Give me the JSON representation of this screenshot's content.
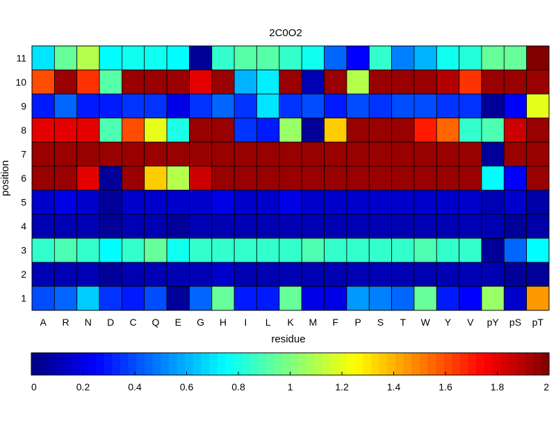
{
  "chart_data": {
    "type": "heatmap",
    "title": "2C0O2",
    "xlabel": "residue",
    "ylabel": "position",
    "x_categories": [
      "A",
      "R",
      "N",
      "D",
      "C",
      "Q",
      "E",
      "G",
      "H",
      "I",
      "L",
      "K",
      "M",
      "F",
      "P",
      "S",
      "T",
      "W",
      "Y",
      "V",
      "pY",
      "pS",
      "pT"
    ],
    "y_categories": [
      "11",
      "10",
      "9",
      "8",
      "7",
      "6",
      "5",
      "4",
      "3",
      "2",
      "1"
    ],
    "values": [
      [
        0.7,
        0.95,
        1.1,
        0.75,
        0.78,
        0.78,
        0.75,
        0.05,
        0.85,
        0.92,
        0.92,
        0.85,
        0.78,
        0.45,
        0.25,
        0.85,
        0.5,
        0.6,
        0.78,
        0.82,
        0.95,
        0.95,
        2.0
      ],
      [
        1.6,
        1.95,
        1.65,
        0.92,
        1.95,
        1.95,
        1.95,
        1.8,
        1.95,
        0.6,
        0.72,
        1.95,
        0.1,
        1.95,
        1.1,
        1.95,
        1.95,
        1.95,
        1.9,
        1.65,
        1.95,
        1.95,
        1.95
      ],
      [
        0.3,
        0.45,
        0.3,
        0.3,
        0.35,
        0.35,
        0.2,
        0.35,
        0.45,
        0.35,
        0.7,
        0.35,
        0.4,
        0.3,
        0.4,
        0.35,
        0.4,
        0.4,
        0.35,
        0.35,
        0.05,
        0.25,
        1.2
      ],
      [
        1.8,
        1.8,
        1.8,
        0.9,
        1.6,
        1.2,
        0.8,
        1.95,
        1.95,
        0.35,
        0.3,
        1.05,
        0.05,
        1.35,
        1.95,
        1.95,
        1.95,
        1.7,
        1.55,
        0.85,
        0.9,
        1.85,
        1.95
      ],
      [
        1.95,
        1.95,
        1.95,
        1.95,
        1.95,
        1.95,
        1.95,
        1.95,
        1.95,
        1.95,
        1.95,
        1.95,
        1.95,
        1.95,
        1.95,
        1.95,
        1.95,
        1.95,
        1.95,
        1.95,
        0.05,
        1.95,
        1.95
      ],
      [
        1.95,
        1.95,
        1.8,
        0.05,
        1.95,
        1.35,
        1.1,
        1.85,
        1.95,
        1.95,
        1.95,
        1.95,
        1.95,
        1.95,
        1.95,
        1.95,
        1.95,
        1.95,
        1.95,
        1.95,
        0.75,
        0.25,
        1.95
      ],
      [
        0.15,
        0.2,
        0.15,
        0.05,
        0.15,
        0.15,
        0.15,
        0.15,
        0.2,
        0.15,
        0.15,
        0.2,
        0.15,
        0.15,
        0.15,
        0.15,
        0.15,
        0.15,
        0.15,
        0.15,
        0.1,
        0.15,
        0.08
      ],
      [
        0.1,
        0.1,
        0.1,
        0.05,
        0.1,
        0.1,
        0.05,
        0.1,
        0.1,
        0.1,
        0.1,
        0.1,
        0.1,
        0.1,
        0.1,
        0.1,
        0.1,
        0.1,
        0.1,
        0.1,
        0.1,
        0.05,
        0.08
      ],
      [
        0.85,
        0.9,
        0.85,
        0.75,
        0.85,
        0.95,
        0.78,
        0.85,
        0.85,
        0.85,
        0.85,
        0.85,
        0.9,
        0.85,
        0.85,
        0.85,
        0.85,
        0.9,
        0.85,
        0.85,
        0.05,
        0.45,
        0.75
      ],
      [
        0.1,
        0.1,
        0.1,
        0.05,
        0.1,
        0.1,
        0.1,
        0.1,
        0.15,
        0.1,
        0.1,
        0.1,
        0.1,
        0.1,
        0.1,
        0.1,
        0.1,
        0.1,
        0.1,
        0.1,
        0.1,
        0.05,
        0.05
      ],
      [
        0.4,
        0.45,
        0.65,
        0.35,
        0.3,
        0.4,
        0.05,
        0.45,
        0.95,
        0.3,
        0.3,
        0.95,
        0.2,
        0.2,
        0.55,
        0.5,
        0.45,
        0.95,
        0.3,
        0.25,
        1.05,
        0.15,
        1.45
      ]
    ],
    "color_range": [
      0,
      2
    ],
    "colormap": "jet",
    "colorbar_ticks": [
      "0",
      "0.2",
      "0.4",
      "0.6",
      "0.8",
      "1",
      "1.2",
      "1.4",
      "1.6",
      "1.8",
      "2"
    ],
    "grid": true
  }
}
